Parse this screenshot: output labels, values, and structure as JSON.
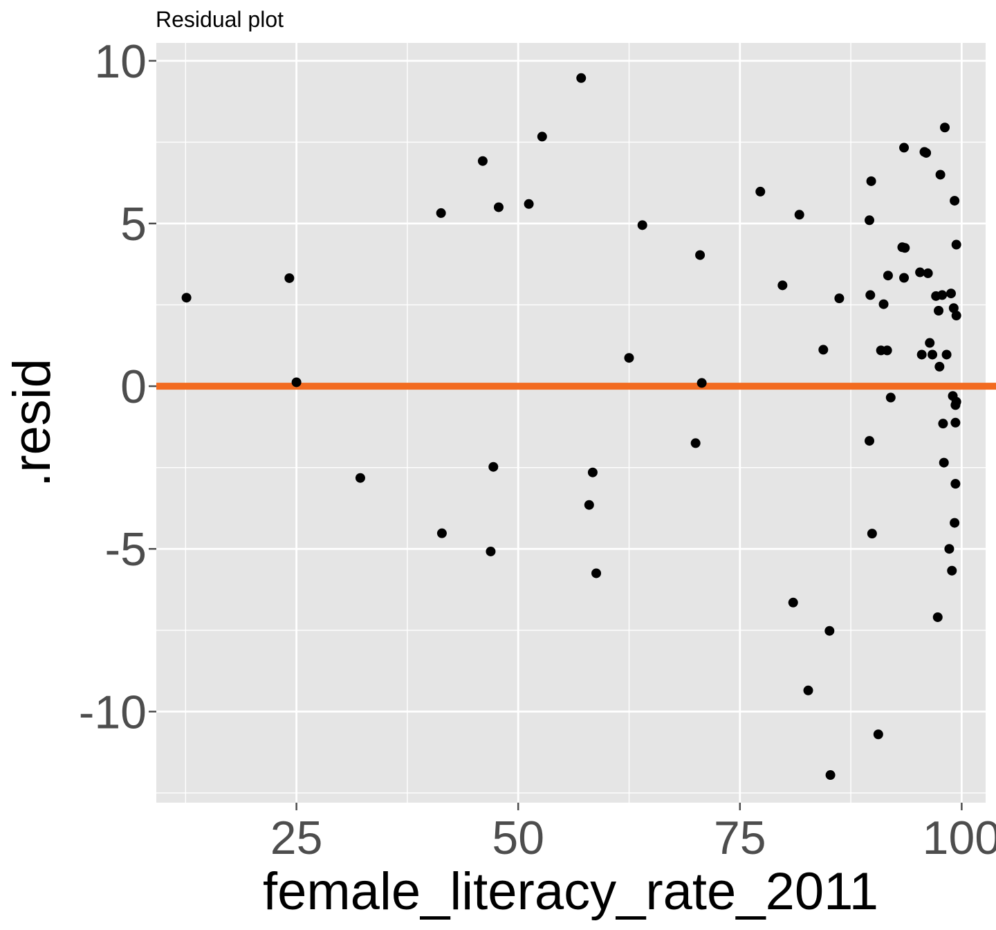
{
  "chart_data": {
    "type": "scatter",
    "title": "Residual plot",
    "xlabel": "female_literacy_rate_2011",
    "ylabel": ".resid",
    "xlim": [
      9.2,
      102.7
    ],
    "ylim": [
      -12.8,
      10.55
    ],
    "x_ticks": [
      25,
      50,
      75,
      100
    ],
    "x_tick_labels": [
      "25",
      "50",
      "75",
      "100"
    ],
    "y_ticks": [
      -10,
      -5,
      0,
      5,
      10
    ],
    "y_tick_labels": [
      "-10",
      "-5",
      "0",
      "5",
      "10"
    ],
    "reference_line": {
      "y": 0,
      "color": "#f26b21"
    },
    "colors": {
      "panel": "#e5e5e5",
      "grid": "#ffffff",
      "points": "#000000",
      "ticks": "#4d4d4d"
    },
    "points": [
      {
        "x": 12.6,
        "y": 2.72
      },
      {
        "x": 24.2,
        "y": 3.32
      },
      {
        "x": 25.0,
        "y": 0.12
      },
      {
        "x": 32.2,
        "y": -2.82
      },
      {
        "x": 41.3,
        "y": 5.32
      },
      {
        "x": 41.4,
        "y": -4.52
      },
      {
        "x": 46.0,
        "y": 6.92
      },
      {
        "x": 46.9,
        "y": -5.08
      },
      {
        "x": 47.2,
        "y": -2.48
      },
      {
        "x": 47.8,
        "y": 5.5
      },
      {
        "x": 51.2,
        "y": 5.6
      },
      {
        "x": 52.7,
        "y": 7.67
      },
      {
        "x": 57.1,
        "y": 9.47
      },
      {
        "x": 58.0,
        "y": -3.65
      },
      {
        "x": 58.4,
        "y": -2.65
      },
      {
        "x": 58.8,
        "y": -5.75
      },
      {
        "x": 62.5,
        "y": 0.87
      },
      {
        "x": 64.0,
        "y": 4.95
      },
      {
        "x": 70.0,
        "y": -1.75
      },
      {
        "x": 70.5,
        "y": 4.03
      },
      {
        "x": 70.7,
        "y": 0.1
      },
      {
        "x": 77.3,
        "y": 5.98
      },
      {
        "x": 79.8,
        "y": 3.1
      },
      {
        "x": 81.0,
        "y": -6.65
      },
      {
        "x": 81.7,
        "y": 5.27
      },
      {
        "x": 82.7,
        "y": -9.35
      },
      {
        "x": 84.4,
        "y": 1.12
      },
      {
        "x": 85.1,
        "y": -7.52
      },
      {
        "x": 85.2,
        "y": -11.95
      },
      {
        "x": 86.2,
        "y": 2.7
      },
      {
        "x": 89.6,
        "y": 5.1
      },
      {
        "x": 89.6,
        "y": -1.68
      },
      {
        "x": 89.7,
        "y": 2.8
      },
      {
        "x": 89.8,
        "y": 6.3
      },
      {
        "x": 89.9,
        "y": -4.53
      },
      {
        "x": 90.6,
        "y": -10.7
      },
      {
        "x": 90.9,
        "y": 1.1
      },
      {
        "x": 91.2,
        "y": 2.52
      },
      {
        "x": 91.6,
        "y": 1.1
      },
      {
        "x": 91.7,
        "y": 3.4
      },
      {
        "x": 92.0,
        "y": -0.35
      },
      {
        "x": 93.3,
        "y": 4.27
      },
      {
        "x": 93.5,
        "y": 7.33
      },
      {
        "x": 93.5,
        "y": 3.33
      },
      {
        "x": 93.6,
        "y": 4.25
      },
      {
        "x": 95.3,
        "y": 3.5
      },
      {
        "x": 95.5,
        "y": 0.97
      },
      {
        "x": 95.8,
        "y": 7.2
      },
      {
        "x": 96.0,
        "y": 7.17
      },
      {
        "x": 96.2,
        "y": 3.47
      },
      {
        "x": 96.4,
        "y": 1.33
      },
      {
        "x": 96.7,
        "y": 0.97
      },
      {
        "x": 97.1,
        "y": 2.77
      },
      {
        "x": 97.3,
        "y": -7.1
      },
      {
        "x": 97.4,
        "y": 2.32
      },
      {
        "x": 97.5,
        "y": 0.6
      },
      {
        "x": 97.6,
        "y": 6.5
      },
      {
        "x": 97.8,
        "y": 2.8
      },
      {
        "x": 97.9,
        "y": -1.15
      },
      {
        "x": 98.0,
        "y": -2.35
      },
      {
        "x": 98.1,
        "y": 7.95
      },
      {
        "x": 98.3,
        "y": 0.97
      },
      {
        "x": 98.6,
        "y": -5.0
      },
      {
        "x": 98.8,
        "y": 2.85
      },
      {
        "x": 98.9,
        "y": -5.67
      },
      {
        "x": 99.0,
        "y": -0.3
      },
      {
        "x": 99.1,
        "y": 2.4
      },
      {
        "x": 99.2,
        "y": -4.2
      },
      {
        "x": 99.2,
        "y": 5.7
      },
      {
        "x": 99.3,
        "y": -3.0
      },
      {
        "x": 99.3,
        "y": -0.58
      },
      {
        "x": 99.3,
        "y": -1.12
      },
      {
        "x": 99.4,
        "y": 2.17
      },
      {
        "x": 99.4,
        "y": 4.35
      },
      {
        "x": 99.4,
        "y": -0.48
      }
    ]
  }
}
